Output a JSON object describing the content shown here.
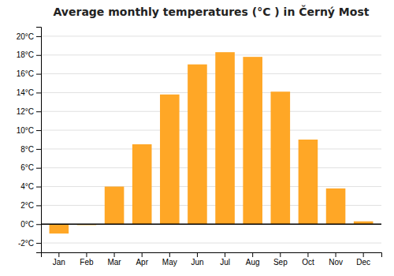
{
  "chart_data": {
    "type": "bar",
    "title": "Average monthly temperatures (°C ) in Černý Most",
    "categories": [
      "Jan",
      "Feb",
      "Mar",
      "Apr",
      "May",
      "Jun",
      "Jul",
      "Aug",
      "Sep",
      "Oct",
      "Nov",
      "Dec"
    ],
    "values": [
      -1.0,
      -0.1,
      4.0,
      8.5,
      13.8,
      17.0,
      18.3,
      17.8,
      14.1,
      9.0,
      3.8,
      0.3
    ],
    "color": "#FFA726",
    "ylim": [
      -3,
      21
    ],
    "yticks": [
      {
        "value": -2,
        "label": "-2°C"
      },
      {
        "value": 0,
        "label": "0°C"
      },
      {
        "value": 2,
        "label": "2°C"
      },
      {
        "value": 4,
        "label": "4°C"
      },
      {
        "value": 6,
        "label": "6°C"
      },
      {
        "value": 8,
        "label": "8°C"
      },
      {
        "value": 10,
        "label": "10°C"
      },
      {
        "value": 12,
        "label": "12°C"
      },
      {
        "value": 14,
        "label": "14°C"
      },
      {
        "value": 16,
        "label": "16°C"
      },
      {
        "value": 18,
        "label": "18°C"
      },
      {
        "value": 20,
        "label": "20°C"
      }
    ],
    "grid": true
  }
}
